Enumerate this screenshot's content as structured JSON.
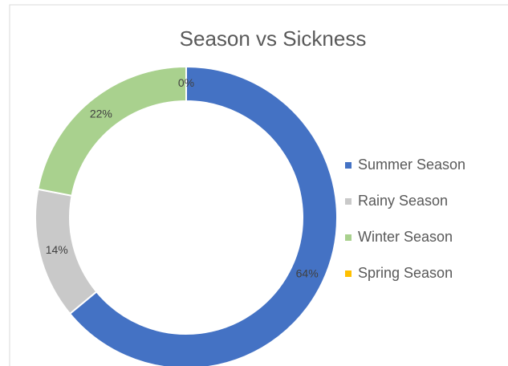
{
  "chart_data": {
    "type": "doughnut",
    "title": "Season vs Sickness",
    "categories": [
      "Summer Season",
      "Rainy Season",
      "Winter Season",
      "Spring Season"
    ],
    "values": [
      64,
      14,
      22,
      0
    ],
    "value_labels": [
      "64%",
      "14%",
      "22%",
      "0%"
    ],
    "colors": [
      "#4472c4",
      "#c9c9c9",
      "#a9d18e",
      "#ffc000"
    ],
    "legend": "right"
  }
}
